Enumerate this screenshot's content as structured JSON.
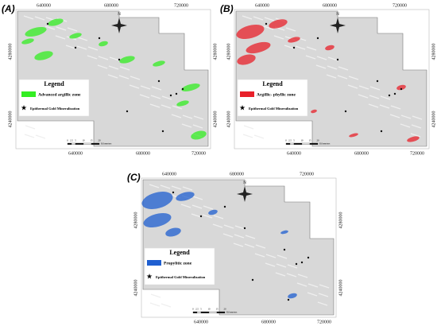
{
  "panels": [
    {
      "label": "(A)",
      "top_ticks": [
        "640000",
        "680000",
        "720000"
      ],
      "bottom_ticks": [
        "640000",
        "680000",
        "720000"
      ],
      "left_ticks": [
        "4280000",
        "4240000"
      ],
      "right_ticks": [
        "4280000",
        "4240000"
      ],
      "north": "N",
      "legend": {
        "title": "Legend",
        "zone": "Advanced argillic zone",
        "gold": "Epithermal Gold Mineralization"
      },
      "scale": [
        "0",
        "2.5",
        "5",
        "10",
        "15",
        "20",
        "Kilometers"
      ]
    },
    {
      "label": "(B)",
      "top_ticks": [
        "640000",
        "680000",
        "720000"
      ],
      "bottom_ticks": [
        "640000",
        "680000",
        "720000"
      ],
      "left_ticks": [
        "4280000",
        "4240000"
      ],
      "right_ticks": [
        "4280000",
        "4240000"
      ],
      "north": "N",
      "legend": {
        "title": "Legend",
        "zone": "Argillic- phyllic zone",
        "gold": "Epithermal Gold Mineralization"
      },
      "scale": [
        "0",
        "2.5",
        "5",
        "10",
        "15",
        "20",
        "Kilometers"
      ]
    },
    {
      "label": "(C)",
      "top_ticks": [
        "640000",
        "680000",
        "720000"
      ],
      "bottom_ticks": [
        "640000",
        "680000",
        "720000"
      ],
      "left_ticks": [
        "4280000",
        "4240000"
      ],
      "right_ticks": [
        "4280000",
        "4240000"
      ],
      "north": "N",
      "legend": {
        "title": "Legend",
        "zone": "Propylitic zone",
        "gold": "Epithermal Gold Mineralization"
      },
      "scale": [
        "0",
        "2.5",
        "5",
        "10",
        "15",
        "20",
        "Kilometers"
      ]
    }
  ]
}
